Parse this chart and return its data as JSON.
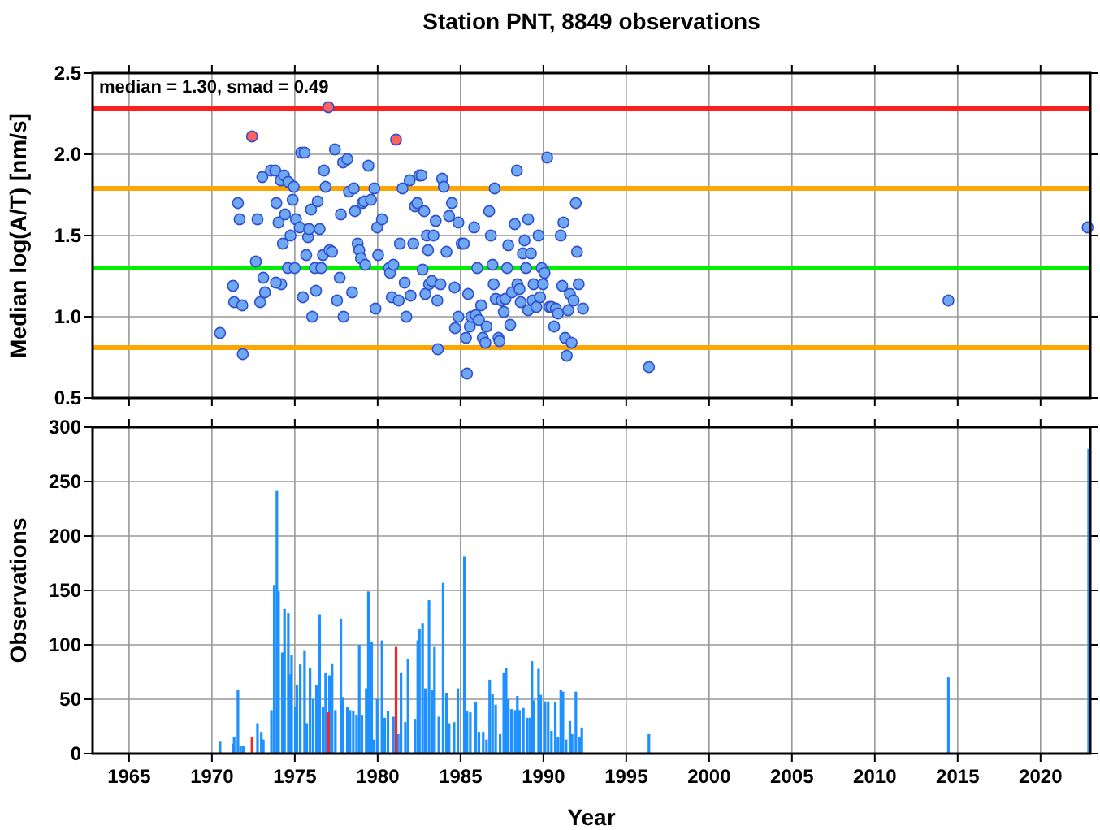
{
  "chart_data": [
    {
      "type": "scatter",
      "title": "Station PNT, 8849 observations",
      "ylabel": "Median log(A/T) [nm/s]",
      "annotations": [
        "median = 1.30, smad = 0.49"
      ],
      "xlim": [
        1962.8,
        2023
      ],
      "xticks": [
        1965,
        1970,
        1975,
        1980,
        1985,
        1990,
        1995,
        2000,
        2005,
        2010,
        2015,
        2020
      ],
      "ylim": [
        0.5,
        2.5
      ],
      "yticks": [
        {
          "value": 0.5,
          "label": "0.5"
        },
        {
          "value": 1,
          "label": "1.0"
        },
        {
          "value": 1.5,
          "label": "1.5"
        },
        {
          "value": 2,
          "label": "2.0"
        },
        {
          "value": 2.5,
          "label": "2.5"
        }
      ],
      "tick_labels": "y",
      "grid": true,
      "marker": "circle",
      "ref_lines": [
        {
          "axis": "y",
          "value": 2.28,
          "color": "#ff2020"
        },
        {
          "axis": "y",
          "value": 1.79,
          "color": "#ffa500"
        },
        {
          "axis": "y",
          "value": 1.3,
          "color": "#00ee00"
        },
        {
          "axis": "y",
          "value": 0.81,
          "color": "#ffa500"
        }
      ],
      "series": [
        {
          "color": "#6fa8f0",
          "x": [
            1970.49,
            1971.86,
            1971.27,
            1971.34,
            1971.83,
            1971.57,
            1971.67,
            1972.65,
            1972.75,
            1972.91,
            1973.1,
            1973.2,
            1973.04,
            1973.56,
            1973.82,
            1973.89,
            1974.02,
            1974.15,
            1974.35,
            1974.18,
            1973.86,
            1974.28,
            1974.41,
            1974.61,
            1974.58,
            1974.87,
            1974.94,
            1974.74,
            1975.07,
            1975.0,
            1975.29,
            1975.39,
            1975.59,
            1975.49,
            1975.69,
            1975.8,
            1975.86,
            1975.98,
            1976.05,
            1976.21,
            1976.28,
            1976.38,
            1976.5,
            1976.6,
            1976.7,
            1976.76,
            1976.86,
            1977.09,
            1977.25,
            1977.42,
            1977.55,
            1977.71,
            1977.78,
            1977.91,
            1977.94,
            1978.17,
            1978.27,
            1978.46,
            1978.56,
            1978.63,
            1978.79,
            1978.89,
            1978.99,
            1979.08,
            1979.18,
            1979.25,
            1979.44,
            1979.6,
            1979.8,
            1979.87,
            1979.97,
            1980.03,
            1980.26,
            1980.69,
            1980.75,
            1980.85,
            1980.95,
            1981.27,
            1981.34,
            1981.5,
            1981.63,
            1981.73,
            1981.93,
            1981.99,
            1982.15,
            1982.25,
            1982.39,
            1982.52,
            1982.65,
            1982.71,
            1982.81,
            1982.88,
            1982.97,
            1983.04,
            1983.1,
            1983.27,
            1983.37,
            1983.5,
            1983.6,
            1983.63,
            1983.79,
            1983.89,
            1983.99,
            1984.15,
            1984.31,
            1984.48,
            1984.64,
            1984.67,
            1984.87,
            1984.87,
            1985.07,
            1985.2,
            1985.33,
            1985.39,
            1985.46,
            1985.56,
            1985.65,
            1985.82,
            1985.92,
            1986.01,
            1986.11,
            1986.24,
            1986.34,
            1986.5,
            1986.57,
            1986.73,
            1986.83,
            1986.93,
            1987.0,
            1987.06,
            1987.12,
            1987.29,
            1987.35,
            1987.48,
            1987.61,
            1987.71,
            1987.81,
            1987.88,
            1988.0,
            1988.1,
            1988.27,
            1988.4,
            1988.43,
            1988.56,
            1988.63,
            1988.76,
            1988.86,
            1988.95,
            1989.08,
            1989.08,
            1989.25,
            1989.35,
            1989.41,
            1989.58,
            1989.71,
            1989.8,
            1989.9,
            1989.97,
            1990.07,
            1990.23,
            1990.36,
            1990.49,
            1990.65,
            1990.75,
            1990.88,
            1991.05,
            1991.14,
            1991.21,
            1991.31,
            1991.41,
            1991.5,
            1991.6,
            1991.7,
            1991.83,
            1991.96,
            1992.03,
            1992.13,
            1992.39,
            1996.37,
            2014.44,
            2022.84
          ],
          "values": [
            0.9,
            0.77,
            1.19,
            1.09,
            1.07,
            1.7,
            1.6,
            1.34,
            1.6,
            1.09,
            1.24,
            1.15,
            1.86,
            1.9,
            1.9,
            1.7,
            1.58,
            1.84,
            1.87,
            1.2,
            1.21,
            1.45,
            1.63,
            1.83,
            1.3,
            1.72,
            1.8,
            1.5,
            1.6,
            1.3,
            1.55,
            2.01,
            2.01,
            1.12,
            1.38,
            1.49,
            1.54,
            1.66,
            1.0,
            1.3,
            1.16,
            1.71,
            1.54,
            1.3,
            1.38,
            1.9,
            1.8,
            1.41,
            1.4,
            2.03,
            1.1,
            1.24,
            1.63,
            1.95,
            1.0,
            1.97,
            1.77,
            1.15,
            1.79,
            1.65,
            1.45,
            1.41,
            1.36,
            1.7,
            1.71,
            1.32,
            1.93,
            1.72,
            1.79,
            1.05,
            1.55,
            1.38,
            1.6,
            1.3,
            1.27,
            1.12,
            1.32,
            1.1,
            1.45,
            1.79,
            1.21,
            1.0,
            1.84,
            1.13,
            1.45,
            1.68,
            1.7,
            1.87,
            1.87,
            1.29,
            1.65,
            1.14,
            1.5,
            1.41,
            1.2,
            1.22,
            1.5,
            1.59,
            1.1,
            0.8,
            1.2,
            1.85,
            1.8,
            1.4,
            1.62,
            1.7,
            1.18,
            0.93,
            1.58,
            1.0,
            1.45,
            1.45,
            0.87,
            0.65,
            1.14,
            0.94,
            1.0,
            1.55,
            1.01,
            1.3,
            0.98,
            1.07,
            0.87,
            0.84,
            0.94,
            1.65,
            1.5,
            1.32,
            1.2,
            1.79,
            1.11,
            0.87,
            0.85,
            1.1,
            1.03,
            1.11,
            1.3,
            1.44,
            0.95,
            1.15,
            1.57,
            1.9,
            1.2,
            1.17,
            1.09,
            1.39,
            1.47,
            1.3,
            1.6,
            1.04,
            1.39,
            1.1,
            1.2,
            1.06,
            1.5,
            1.12,
            1.3,
            1.2,
            1.27,
            1.98,
            1.06,
            1.06,
            0.94,
            1.05,
            1.02,
            1.5,
            1.19,
            1.58,
            0.87,
            0.76,
            1.04,
            1.14,
            0.84,
            1.1,
            1.7,
            1.4,
            1.2,
            1.05,
            0.69,
            1.1,
            1.55
          ]
        },
        {
          "color": "#ff6060",
          "x": [
            1972.42,
            1977.03,
            1981.11
          ],
          "values": [
            2.11,
            2.29,
            2.09
          ]
        }
      ]
    },
    {
      "type": "bar",
      "ylabel": "Observations",
      "xlabel": "Year",
      "xlim": [
        1962.8,
        2023
      ],
      "xticks": [
        1965,
        1970,
        1975,
        1980,
        1985,
        1990,
        1995,
        2000,
        2005,
        2010,
        2015,
        2020
      ],
      "ylim": [
        0,
        300
      ],
      "yticks": [
        0,
        50,
        100,
        150,
        200,
        250,
        300
      ],
      "grid": true,
      "series": [
        {
          "color": "#1e90ff",
          "x": [
            1970.49,
            1971.27,
            1971.34,
            1971.57,
            1971.73,
            1971.9,
            1972.75,
            1972.98,
            1973.1,
            1973.59,
            1973.76,
            1973.92,
            1974.02,
            1974.25,
            1974.38,
            1974.61,
            1974.74,
            1974.81,
            1975.03,
            1975.13,
            1975.33,
            1975.59,
            1975.72,
            1975.92,
            1976.11,
            1976.31,
            1976.5,
            1976.7,
            1976.86,
            1977.09,
            1977.25,
            1977.45,
            1977.78,
            1977.91,
            1978.17,
            1978.33,
            1978.53,
            1978.73,
            1978.89,
            1979.05,
            1979.31,
            1979.44,
            1979.64,
            1979.77,
            1979.97,
            1980.26,
            1980.42,
            1980.62,
            1980.95,
            1981.24,
            1981.41,
            1981.67,
            1981.83,
            1982.25,
            1982.42,
            1982.52,
            1982.71,
            1982.88,
            1983.1,
            1983.3,
            1983.43,
            1983.69,
            1983.95,
            1984.15,
            1984.31,
            1984.61,
            1984.84,
            1985.23,
            1985.39,
            1985.59,
            1985.92,
            1986.11,
            1986.37,
            1986.57,
            1986.76,
            1986.93,
            1987.12,
            1987.39,
            1987.61,
            1987.75,
            1987.88,
            1988.07,
            1988.3,
            1988.43,
            1988.56,
            1988.79,
            1989.02,
            1989.18,
            1989.31,
            1989.44,
            1989.71,
            1989.84,
            1990.1,
            1990.29,
            1990.49,
            1990.72,
            1990.88,
            1991.05,
            1991.18,
            1991.37,
            1991.6,
            1991.73,
            1991.96,
            1992.19,
            1992.32,
            1996.37,
            2014.44,
            2022.9
          ],
          "values": [
            11,
            9,
            15,
            59,
            7,
            7,
            28,
            20,
            13,
            40,
            155,
            242,
            149,
            93,
            133,
            129,
            73,
            91,
            43,
            63,
            82,
            95,
            28,
            79,
            50,
            63,
            128,
            43,
            74,
            72,
            83,
            40,
            124,
            52,
            43,
            40,
            39,
            35,
            100,
            35,
            60,
            149,
            103,
            13,
            50,
            104,
            33,
            39,
            34,
            18,
            74,
            29,
            87,
            32,
            104,
            115,
            120,
            60,
            141,
            59,
            98,
            34,
            157,
            56,
            28,
            29,
            60,
            181,
            39,
            38,
            47,
            20,
            20,
            13,
            68,
            55,
            45,
            18,
            74,
            79,
            50,
            41,
            40,
            53,
            40,
            42,
            33,
            33,
            85,
            49,
            78,
            54,
            48,
            48,
            21,
            47,
            15,
            59,
            57,
            13,
            30,
            18,
            57,
            15,
            24,
            18,
            70,
            280
          ]
        },
        {
          "color": "#ff2020",
          "x": [
            1972.42,
            1977.03,
            1981.11
          ],
          "values": [
            15,
            38,
            98
          ]
        }
      ]
    }
  ]
}
